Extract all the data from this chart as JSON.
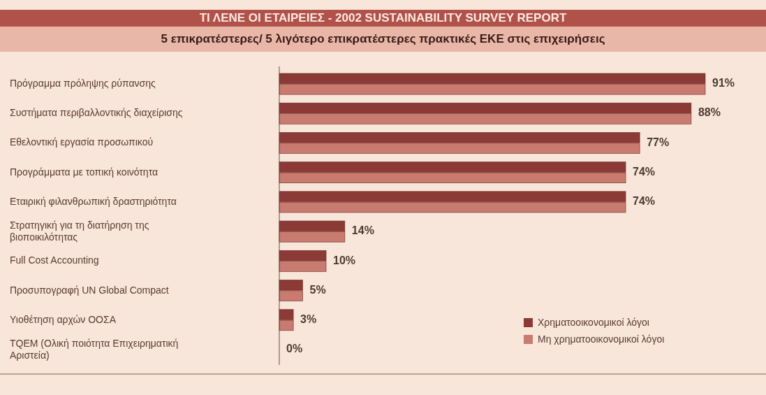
{
  "chart_data": {
    "type": "bar",
    "orientation": "horizontal",
    "title": "ΤΙ ΛΕΝΕ ΟΙ ΕΤΑΙΡΕΙΕΣ - 2002 SUSTAINABILITY SURVEY REPORT",
    "subtitle": "5 επικρατέστερες/ 5 λιγότερο επικρατέστερες πρακτικές ΕΚΕ στις επιχειρήσεις",
    "categories": [
      "Πρόγραμμα πρόληψης ρύπανσης",
      "Συστήματα περιβαλλοντικής διαχείρισης",
      "Εθελοντική εργασία προσωπικού",
      "Προγράμματα με τοπική κοινότητα",
      "Εταιρική φιλανθρωπική δραστηριότητα",
      "Στρατηγική για τη διατήρηση της βιοποικιλότητας",
      "Full Cost Accounting",
      "Προσυπογραφή UN Global Compact",
      "Υιοθέτηση αρχών ΟΟΣΑ",
      "TQEM (Ολική ποιότητα Επιχειρηματική Αριστεία)"
    ],
    "series": [
      {
        "name": "Χρηματοοικονομικοί λόγοι",
        "color": "#8b3a35",
        "values": [
          91,
          88,
          77,
          74,
          74,
          14,
          10,
          5,
          3,
          0
        ]
      },
      {
        "name": "Μη χρηματοοικονομικοί λόγοι",
        "color": "#c97b70",
        "values": [
          91,
          88,
          77,
          74,
          74,
          14,
          10,
          5,
          3,
          0
        ],
        "value_labels": [
          "91%",
          "88%",
          "77%",
          "74%",
          "74%",
          "14%",
          "10%",
          "5%",
          "3%",
          "0%"
        ]
      }
    ],
    "legend": "bottom right",
    "grid": false
  }
}
